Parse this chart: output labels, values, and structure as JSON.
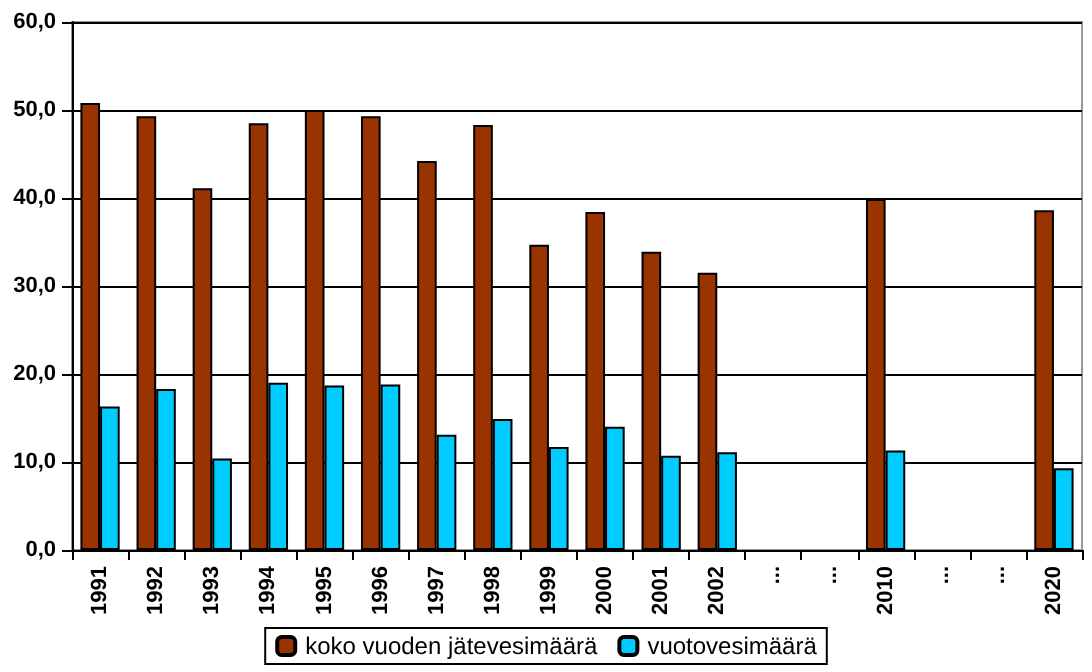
{
  "chart_data": {
    "type": "bar",
    "categories": [
      "1991",
      "1992",
      "1993",
      "1994",
      "1995",
      "1996",
      "1997",
      "1998",
      "1999",
      "2000",
      "2001",
      "2002",
      "...",
      "...",
      "2010",
      "...",
      "...",
      "2020"
    ],
    "series": [
      {
        "name": "koko vuoden jätevesimäärä",
        "color": "#993300",
        "values": [
          50.8,
          49.3,
          41.1,
          48.5,
          50.0,
          49.3,
          44.2,
          48.3,
          34.7,
          38.4,
          33.9,
          31.5,
          null,
          null,
          39.9,
          null,
          null,
          38.6
        ]
      },
      {
        "name": "vuotovesimäärä",
        "color": "#00ccff",
        "values": [
          16.3,
          18.3,
          10.4,
          19.0,
          18.7,
          18.8,
          13.1,
          14.9,
          11.7,
          14.0,
          10.7,
          11.1,
          null,
          null,
          11.3,
          null,
          null,
          9.3
        ]
      }
    ],
    "ylim": [
      0,
      60
    ],
    "yticks": [
      {
        "value": 0,
        "label": "0,0"
      },
      {
        "value": 10,
        "label": "10,0"
      },
      {
        "value": 20,
        "label": "20,0"
      },
      {
        "value": 30,
        "label": "30,0"
      },
      {
        "value": 40,
        "label": "40,0"
      },
      {
        "value": 50,
        "label": "50,0"
      },
      {
        "value": 60,
        "label": "60,0"
      }
    ],
    "grid": "y",
    "legend": "bottom"
  }
}
